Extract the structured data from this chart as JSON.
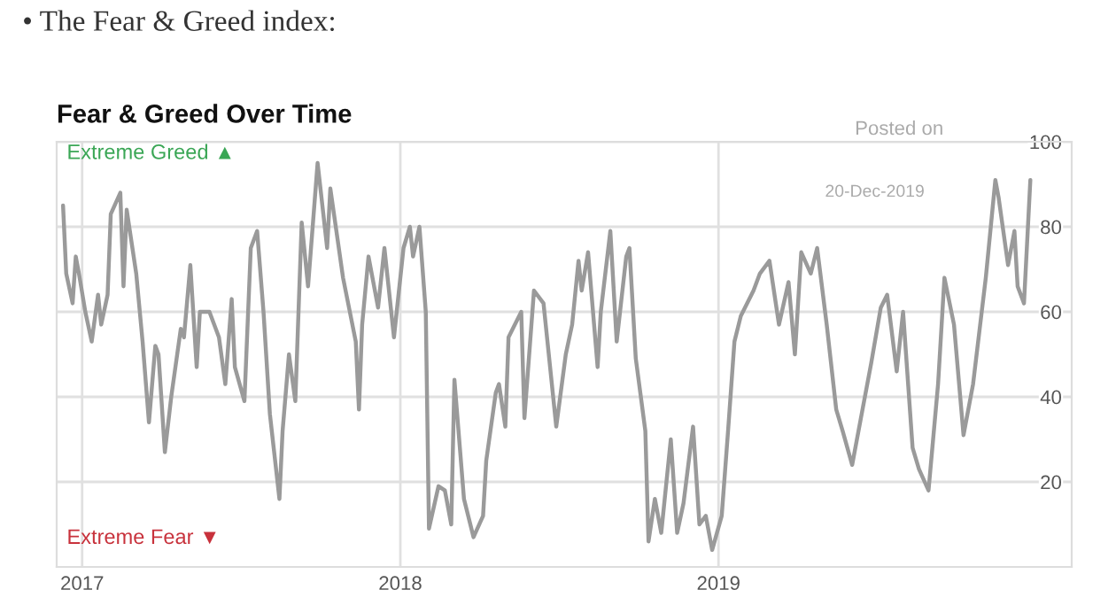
{
  "chart_data": {
    "type": "line",
    "title": "• The Fear & Greed index:",
    "subtitle": "Fear & Greed Over Time",
    "annotations": [
      "Extreme Greed ▲",
      "Extreme Fear ▼",
      "Posted on",
      "20-Dec-2019"
    ],
    "x": [
      2016.94,
      2016.95,
      2016.97,
      2016.98,
      2016.99,
      2017.01,
      2017.03,
      2017.05,
      2017.06,
      2017.08,
      2017.09,
      2017.12,
      2017.13,
      2017.14,
      2017.17,
      2017.19,
      2017.21,
      2017.23,
      2017.24,
      2017.26,
      2017.28,
      2017.31,
      2017.32,
      2017.34,
      2017.36,
      2017.37,
      2017.4,
      2017.43,
      2017.45,
      2017.47,
      2017.48,
      2017.51,
      2017.53,
      2017.55,
      2017.57,
      2017.59,
      2017.62,
      2017.63,
      2017.65,
      2017.67,
      2017.69,
      2017.71,
      2017.74,
      2017.77,
      2017.78,
      2017.82,
      2017.86,
      2017.87,
      2017.88,
      2017.9,
      2017.93,
      2017.95,
      2017.98,
      2018.01,
      2018.03,
      2018.04,
      2018.06,
      2018.08,
      2018.09,
      2018.12,
      2018.14,
      2018.16,
      2018.17,
      2018.2,
      2018.23,
      2018.26,
      2018.27,
      2018.3,
      2018.31,
      2018.33,
      2018.34,
      2018.38,
      2018.39,
      2018.42,
      2018.45,
      2018.49,
      2018.52,
      2018.54,
      2018.56,
      2018.57,
      2018.59,
      2018.62,
      2018.63,
      2018.66,
      2018.68,
      2018.71,
      2018.72,
      2018.74,
      2018.77,
      2018.78,
      2018.8,
      2018.82,
      2018.85,
      2018.87,
      2018.89,
      2018.92,
      2018.94,
      2018.96,
      2018.98,
      2019.01,
      2019.03,
      2019.05,
      2019.07,
      2019.11,
      2019.13,
      2019.16,
      2019.19,
      2019.22,
      2019.24,
      2019.26,
      2019.29,
      2019.31,
      2019.34,
      2019.37,
      2019.39,
      2019.42,
      2019.45,
      2019.48,
      2019.51,
      2019.53,
      2019.56,
      2019.58,
      2019.61,
      2019.63,
      2019.66,
      2019.69,
      2019.71,
      2019.74,
      2019.77,
      2019.8,
      2019.84,
      2019.87,
      2019.88,
      2019.91,
      2019.93,
      2019.94,
      2019.96,
      2019.98
    ],
    "series": [
      {
        "color": "#9a9a9a",
        "values": [
          85,
          69,
          62,
          73,
          69,
          60,
          53,
          64,
          57,
          64,
          83,
          88,
          66,
          84,
          69,
          53,
          34,
          52,
          50,
          27,
          40,
          56,
          54,
          71,
          47,
          60,
          60,
          54,
          43,
          63,
          47,
          39,
          75,
          79,
          60,
          36,
          16,
          32,
          50,
          39,
          81,
          66,
          95,
          75,
          89,
          68,
          53,
          37,
          57,
          73,
          61,
          75,
          54,
          75,
          80,
          73,
          80,
          60,
          9,
          19,
          18,
          10,
          44,
          16,
          7,
          12,
          25,
          41,
          43,
          33,
          54,
          60,
          35,
          65,
          62,
          33,
          50,
          57,
          72,
          65,
          74,
          47,
          60,
          79,
          53,
          73,
          75,
          49,
          32,
          6,
          16,
          8,
          30,
          8,
          15,
          33,
          10,
          12,
          4,
          12,
          32,
          53,
          59,
          65,
          69,
          72,
          57,
          67,
          50,
          74,
          69,
          75,
          57,
          37,
          32,
          24,
          36,
          48,
          61,
          64,
          46,
          60,
          28,
          23,
          18,
          43,
          68,
          57,
          31,
          43,
          68,
          91,
          87,
          71,
          79,
          66,
          62,
          91
        ]
      }
    ],
    "xlim": [
      2016.92,
      2020.11
    ],
    "ylim": [
      0,
      100
    ],
    "xticks": [
      {
        "value": 2017,
        "label": "2017"
      },
      {
        "value": 2018,
        "label": "2018"
      },
      {
        "value": 2019,
        "label": "2019"
      }
    ],
    "yticks": [
      20,
      40,
      60,
      80,
      100
    ],
    "grid": true,
    "marker": "none",
    "line_style": "solid"
  }
}
